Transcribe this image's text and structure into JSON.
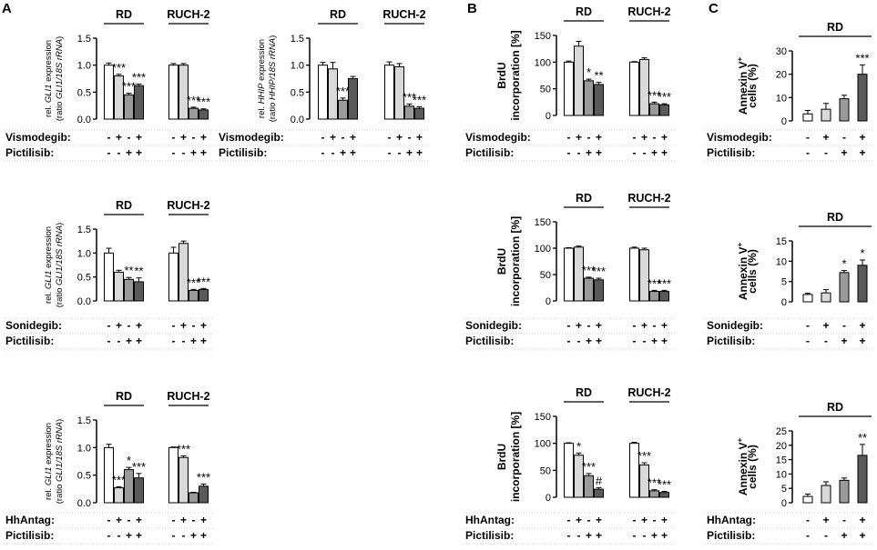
{
  "panels": [
    {
      "letter": "A"
    },
    {
      "letter": "B"
    },
    {
      "letter": "C"
    }
  ],
  "chart_data": [
    {
      "id": "a1",
      "type": "bar",
      "ylabel_lines": [
        [
          "rel. ",
          "GLI1",
          " expression"
        ],
        [
          "(ratio ",
          "GLI1/18S rRNA",
          ")"
        ]
      ],
      "ylim": [
        0,
        1.5
      ],
      "yticks": [
        0,
        0.5,
        1.0,
        1.5
      ],
      "tick_labels": [
        "0.0",
        "0.5",
        "1.0",
        "1.5"
      ],
      "groups": [
        {
          "name": "RD",
          "values": [
            1.0,
            0.8,
            0.45,
            0.62
          ],
          "errors": [
            0.04,
            0.03,
            0.03,
            0.03
          ],
          "stars": [
            "",
            "***",
            "***",
            "***"
          ]
        },
        {
          "name": "RUCH-2",
          "values": [
            1.0,
            1.0,
            0.2,
            0.17
          ],
          "errors": [
            0.03,
            0.03,
            0.02,
            0.02
          ],
          "stars": [
            "",
            "",
            "***",
            "***"
          ]
        }
      ],
      "treatments": [
        {
          "name": "Vismodegib:",
          "signs": [
            "-",
            "+",
            "-",
            "+"
          ]
        },
        {
          "name": "Pictilisib:",
          "signs": [
            "-",
            "-",
            "+",
            "+"
          ]
        }
      ]
    },
    {
      "id": "a2",
      "type": "bar",
      "ylabel_lines": [
        [
          "rel. ",
          "HHIP",
          " expression"
        ],
        [
          "(ratio ",
          "HHIP/18S rRNA",
          ")"
        ]
      ],
      "ylim": [
        0,
        1.5
      ],
      "yticks": [
        0,
        0.5,
        1.0,
        1.5
      ],
      "tick_labels": [
        "0.0",
        "0.5",
        "1.0",
        "1.5"
      ],
      "groups": [
        {
          "name": "RD",
          "values": [
            1.0,
            0.93,
            0.35,
            0.75
          ],
          "errors": [
            0.05,
            0.12,
            0.04,
            0.04
          ],
          "stars": [
            "",
            "",
            "***",
            ""
          ]
        },
        {
          "name": "RUCH-2",
          "values": [
            1.0,
            0.97,
            0.24,
            0.2
          ],
          "errors": [
            0.06,
            0.06,
            0.04,
            0.03
          ],
          "stars": [
            "",
            "",
            "***",
            "***"
          ]
        }
      ],
      "treatments": [
        {
          "name": "Vismodegib:",
          "signs": [
            "-",
            "+",
            "-",
            "+"
          ]
        },
        {
          "name": "Pictilisib:",
          "signs": [
            "-",
            "-",
            "+",
            "+"
          ]
        }
      ]
    },
    {
      "id": "a3",
      "type": "bar",
      "ylabel_lines": [
        [
          "rel. ",
          "GLI1",
          " expression"
        ],
        [
          "(ratio ",
          "GLI1/18S rRNA",
          ")"
        ]
      ],
      "ylim": [
        0,
        1.5
      ],
      "yticks": [
        0,
        0.5,
        1.0,
        1.5
      ],
      "tick_labels": [
        "0.0",
        "0.5",
        "1.0",
        "1.5"
      ],
      "groups": [
        {
          "name": "RD",
          "values": [
            1.0,
            0.6,
            0.45,
            0.4
          ],
          "errors": [
            0.1,
            0.04,
            0.04,
            0.08
          ],
          "stars": [
            "",
            "",
            "**",
            "**"
          ]
        },
        {
          "name": "RUCH-2",
          "values": [
            1.0,
            1.2,
            0.22,
            0.24
          ],
          "errors": [
            0.12,
            0.05,
            0.02,
            0.02
          ],
          "stars": [
            "",
            "",
            "***",
            "***"
          ]
        }
      ],
      "treatments": [
        {
          "name": "Sonidegib:",
          "signs": [
            "-",
            "+",
            "-",
            "+"
          ]
        },
        {
          "name": "Pictilisib:",
          "signs": [
            "-",
            "-",
            "+",
            "+"
          ]
        }
      ]
    },
    {
      "id": "a4",
      "type": "bar",
      "ylabel_lines": [
        [
          "rel. ",
          "GLI1",
          " expression"
        ],
        [
          "(ratio ",
          "GLI1/18S rRNA",
          ")"
        ]
      ],
      "ylim": [
        0,
        1.5
      ],
      "yticks": [
        0,
        0.5,
        1.0,
        1.5
      ],
      "tick_labels": [
        "0.0",
        "0.5",
        "1.0",
        "1.5"
      ],
      "groups": [
        {
          "name": "RD",
          "values": [
            1.0,
            0.27,
            0.6,
            0.45
          ],
          "errors": [
            0.06,
            0.02,
            0.04,
            0.08
          ],
          "stars": [
            "",
            "***",
            "*",
            "***"
          ]
        },
        {
          "name": "RUCH-2",
          "values": [
            1.0,
            0.82,
            0.18,
            0.3
          ],
          "errors": [
            0.01,
            0.03,
            0.01,
            0.04
          ],
          "stars": [
            "",
            "***",
            "",
            "***"
          ]
        }
      ],
      "treatments": [
        {
          "name": "HhAntag:",
          "signs": [
            "-",
            "+",
            "-",
            "+"
          ]
        },
        {
          "name": "Pictilisib:",
          "signs": [
            "-",
            "-",
            "+",
            "+"
          ]
        }
      ]
    },
    {
      "id": "b1",
      "type": "bar",
      "ylabel_lines": [
        [
          "BrdU"
        ],
        [
          "incorporation [%]"
        ]
      ],
      "ylim": [
        0,
        150
      ],
      "yticks": [
        0,
        50,
        100,
        150
      ],
      "tick_labels": [
        "0",
        "50",
        "100",
        "150"
      ],
      "groups": [
        {
          "name": "RD",
          "values": [
            100,
            130,
            65,
            58
          ],
          "errors": [
            2,
            9,
            3,
            4
          ],
          "stars": [
            "",
            "",
            "*",
            "**"
          ]
        },
        {
          "name": "RUCH-2",
          "values": [
            100,
            105,
            22,
            20
          ],
          "errors": [
            1,
            3,
            3,
            2
          ],
          "stars": [
            "",
            "",
            "***",
            "***"
          ]
        }
      ],
      "treatments": [
        {
          "name": "Vismodegib:",
          "signs": [
            "-",
            "+",
            "-",
            "+"
          ]
        },
        {
          "name": "Pictilisib:",
          "signs": [
            "-",
            "-",
            "+",
            "+"
          ]
        }
      ]
    },
    {
      "id": "b2",
      "type": "bar",
      "ylabel_lines": [
        [
          "BrdU"
        ],
        [
          "incorporation [%]"
        ]
      ],
      "ylim": [
        0,
        150
      ],
      "yticks": [
        0,
        50,
        100,
        150
      ],
      "tick_labels": [
        "0",
        "50",
        "100",
        "150"
      ],
      "groups": [
        {
          "name": "RD",
          "values": [
            100,
            102,
            43,
            40
          ],
          "errors": [
            1,
            2,
            2,
            3
          ],
          "stars": [
            "",
            "",
            "***",
            "***"
          ]
        },
        {
          "name": "RUCH-2",
          "values": [
            100,
            97,
            18,
            18
          ],
          "errors": [
            2,
            3,
            2,
            2
          ],
          "stars": [
            "",
            "",
            "***",
            "***"
          ]
        }
      ],
      "treatments": [
        {
          "name": "Sonidegib:",
          "signs": [
            "-",
            "+",
            "-",
            "+"
          ]
        },
        {
          "name": "Pictilisib:",
          "signs": [
            "-",
            "-",
            "+",
            "+"
          ]
        }
      ]
    },
    {
      "id": "b3",
      "type": "bar",
      "ylabel_lines": [
        [
          "BrdU"
        ],
        [
          "incorporation [%]"
        ]
      ],
      "ylim": [
        0,
        150
      ],
      "yticks": [
        0,
        50,
        100,
        150
      ],
      "tick_labels": [
        "0",
        "50",
        "100",
        "150"
      ],
      "groups": [
        {
          "name": "RD",
          "values": [
            100,
            78,
            40,
            15
          ],
          "errors": [
            1,
            4,
            4,
            3
          ],
          "stars": [
            "",
            "*",
            "***",
            "#"
          ]
        },
        {
          "name": "RUCH-2",
          "values": [
            100,
            60,
            12,
            9
          ],
          "errors": [
            2,
            4,
            2,
            2
          ],
          "stars": [
            "",
            "***",
            "***",
            "***"
          ]
        }
      ],
      "treatments": [
        {
          "name": "HhAntag:",
          "signs": [
            "-",
            "+",
            "-",
            "+"
          ]
        },
        {
          "name": "Pictilisib:",
          "signs": [
            "-",
            "-",
            "+",
            "+"
          ]
        }
      ]
    },
    {
      "id": "c1",
      "type": "bar",
      "ylabel_lines": [
        [
          "Annexin V",
          "+"
        ],
        [
          "cells (%)"
        ]
      ],
      "ylim": [
        0,
        30
      ],
      "yticks": [
        0,
        10,
        20,
        30
      ],
      "tick_labels": [
        "0",
        "10",
        "20",
        "30"
      ],
      "groups": [
        {
          "name": "RD",
          "values": [
            3,
            5,
            9.5,
            20
          ],
          "errors": [
            1.5,
            2.5,
            1.5,
            4
          ],
          "stars": [
            "",
            "",
            "",
            "***"
          ]
        }
      ],
      "treatments": [
        {
          "name": "Vismodegib:",
          "signs": [
            "-",
            "+",
            "-",
            "+"
          ]
        },
        {
          "name": "Pictilisib:",
          "signs": [
            "-",
            "-",
            "+",
            "+"
          ]
        }
      ]
    },
    {
      "id": "c2",
      "type": "bar",
      "ylabel_lines": [
        [
          "Annexin V",
          "+"
        ],
        [
          "cells (%)"
        ]
      ],
      "ylim": [
        0,
        15
      ],
      "yticks": [
        0,
        5,
        10,
        15
      ],
      "tick_labels": [
        "0",
        "5",
        "10",
        "15"
      ],
      "groups": [
        {
          "name": "RD",
          "values": [
            1.8,
            2.2,
            7.2,
            9
          ],
          "errors": [
            0.3,
            0.8,
            0.5,
            1.3
          ],
          "stars": [
            "",
            "",
            "*",
            "*"
          ]
        }
      ],
      "treatments": [
        {
          "name": "Sonidegib:",
          "signs": [
            "-",
            "+",
            "-",
            "+"
          ]
        },
        {
          "name": "Pictilisib:",
          "signs": [
            "-",
            "-",
            "+",
            "+"
          ]
        }
      ]
    },
    {
      "id": "c3",
      "type": "bar",
      "ylabel_lines": [
        [
          "Annexin V",
          "+"
        ],
        [
          "cells (%)"
        ]
      ],
      "ylim": [
        0,
        25
      ],
      "yticks": [
        0,
        5,
        10,
        15,
        20,
        25
      ],
      "tick_labels": [
        "0",
        "5",
        "10",
        "15",
        "20",
        "25"
      ],
      "groups": [
        {
          "name": "RD",
          "values": [
            2.2,
            6,
            7.8,
            16.5
          ],
          "errors": [
            0.8,
            1.3,
            0.8,
            3.8
          ],
          "stars": [
            "",
            "",
            "",
            "**"
          ]
        }
      ],
      "treatments": [
        {
          "name": "HhAntag:",
          "signs": [
            "-",
            "+",
            "-",
            "+"
          ]
        },
        {
          "name": "Pictilisib:",
          "signs": [
            "-",
            "-",
            "+",
            "+"
          ]
        }
      ]
    }
  ],
  "colors": {
    "bars": [
      "#ffffff",
      "#d9d9d9",
      "#9a9a9a",
      "#5a5a5a"
    ],
    "axis": "#000000",
    "grid_dots": "#c8c8c8"
  }
}
